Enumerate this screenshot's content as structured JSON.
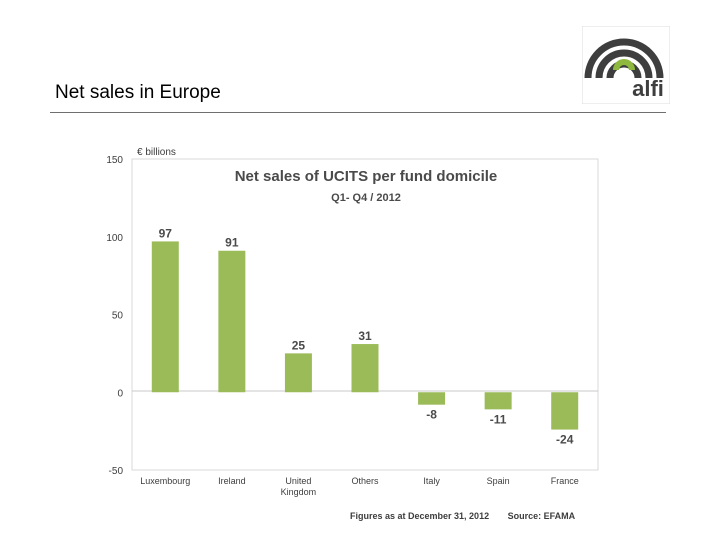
{
  "slide": {
    "title": "Net sales in Europe"
  },
  "logo": {
    "text": "alfi",
    "color_dark": "#3e3e3e",
    "color_green": "#8fb93e"
  },
  "chart_data": {
    "type": "bar",
    "title": "Net sales of UCITS per fund domicile",
    "subtitle": "Q1- Q4 / 2012",
    "unit_label": "€ billions",
    "categories": [
      "Luxembourg",
      "Ireland",
      "United Kingdom",
      "Others",
      "Italy",
      "Spain",
      "France"
    ],
    "category_lines": [
      [
        "Luxembourg"
      ],
      [
        "Ireland"
      ],
      [
        "United",
        "Kingdom"
      ],
      [
        "Others"
      ],
      [
        "Italy"
      ],
      [
        "Spain"
      ],
      [
        "France"
      ]
    ],
    "values": [
      97,
      91,
      25,
      31,
      -8,
      -11,
      -24
    ],
    "value_labels": [
      "97",
      "91",
      "25",
      "31",
      "-8",
      "-11",
      "-24"
    ],
    "ylim": [
      -50,
      150
    ],
    "yticks": [
      -50,
      0,
      50,
      100,
      150
    ],
    "bar_color": "#9bbb59",
    "grid": false
  },
  "notes": {
    "figures_as_at": "Figures as at  December 31, 2012",
    "source": "Source: EFAMA"
  }
}
